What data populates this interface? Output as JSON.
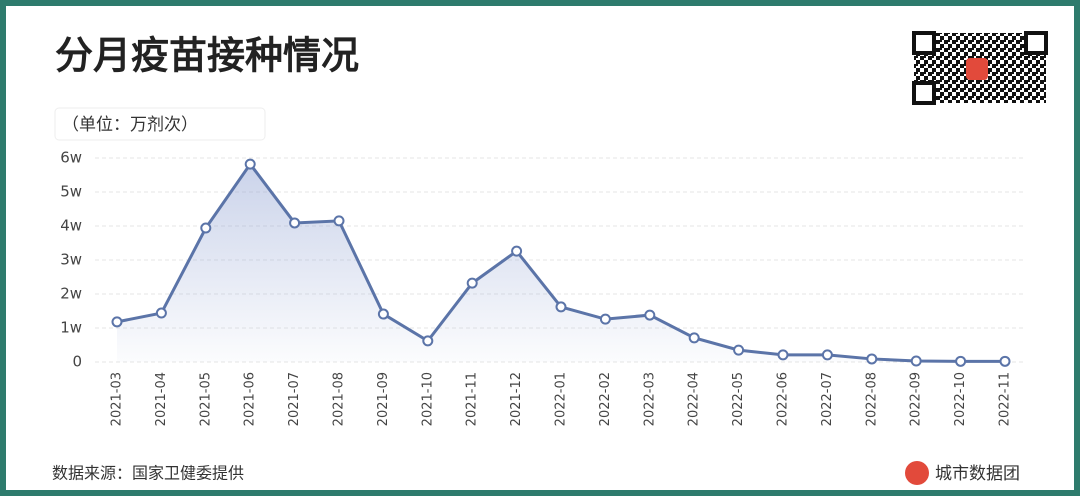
{
  "title": "分月疫苗接种情况",
  "unit_label": "（单位：万剂次）",
  "source": "数据来源：国家卫健委提供",
  "brand": "城市数据团",
  "chart_data": {
    "type": "line",
    "area": true,
    "color": "#5b74a8",
    "grid": true,
    "categories": [
      "2021-03",
      "2021-04",
      "2021-05",
      "2021-06",
      "2021-07",
      "2021-08",
      "2021-09",
      "2021-10",
      "2021-11",
      "2021-12",
      "2022-01",
      "2022-02",
      "2022-03",
      "2022-04",
      "2022-05",
      "2022-06",
      "2022-07",
      "2022-08",
      "2022-09",
      "2022-10",
      "2022-11"
    ],
    "values": [
      11800,
      14400,
      39400,
      58200,
      40900,
      41500,
      14100,
      6200,
      23200,
      32600,
      16200,
      12600,
      13800,
      7100,
      3500,
      2100,
      2100,
      900,
      300,
      200,
      200
    ],
    "ylim": [
      0,
      60000
    ],
    "yticks": [
      0,
      {
        "value": 10000,
        "label": "1w"
      },
      {
        "value": 20000,
        "label": "2w"
      },
      {
        "value": 30000,
        "label": "3w"
      },
      {
        "value": 40000,
        "label": "4w"
      },
      {
        "value": 50000,
        "label": "5w"
      },
      {
        "value": 60000,
        "label": "6w"
      }
    ]
  }
}
